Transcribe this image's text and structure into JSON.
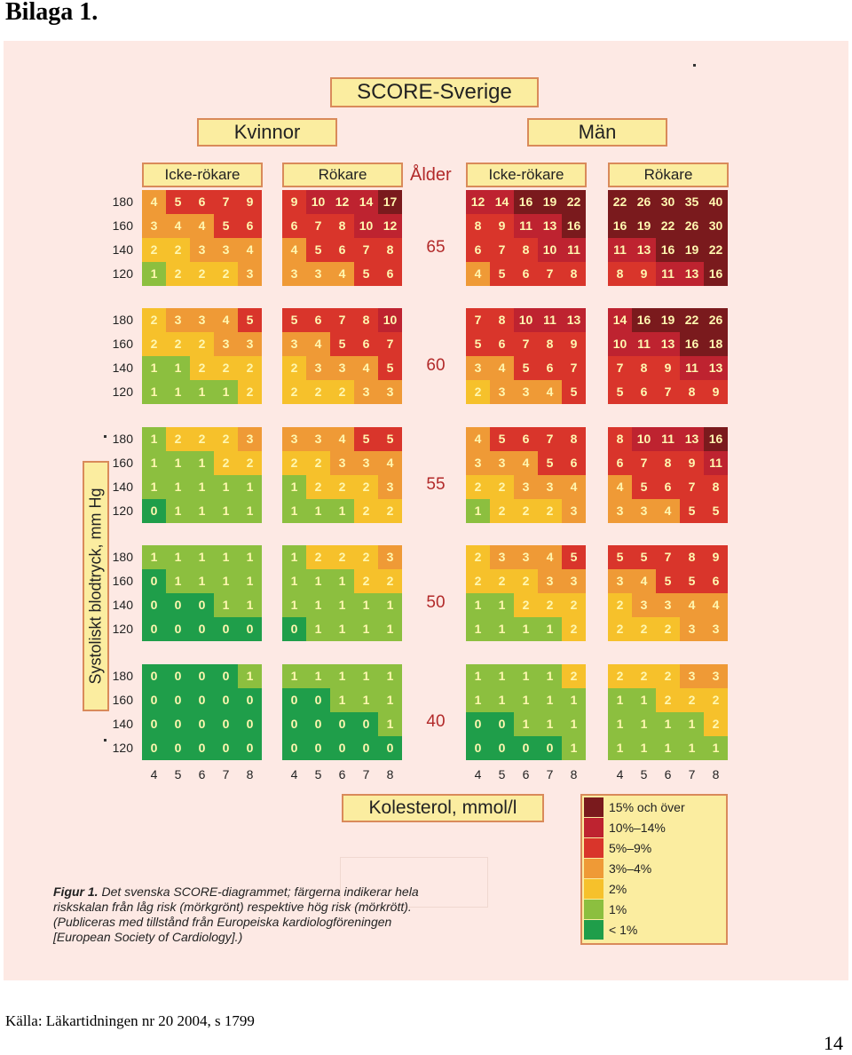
{
  "page": {
    "heading": "Bilaga 1.",
    "source": "Källa: Läkartidningen nr 20 2004, s 1799",
    "page_number": "14"
  },
  "figure": {
    "title": "SCORE-Sverige",
    "gender_women": "Kvinnor",
    "gender_men": "Män",
    "non_smoker": "Icke-rökare",
    "smoker": "Rökare",
    "age_header": "Ålder",
    "y_axis_label": "Systoliskt blodtryck, mm Hg",
    "x_axis_label": "Kolesterol, mmol/l",
    "bp_levels": [
      "180",
      "160",
      "140",
      "120"
    ],
    "cholesterol_ticks": [
      "4",
      "5",
      "6",
      "7",
      "8"
    ],
    "ages": [
      "65",
      "60",
      "55",
      "50",
      "40"
    ],
    "colors": {
      "dg": "#1f9e4a",
      "lg": "#8cbf3f",
      "yl": "#f6c12b",
      "or": "#ef9a36",
      "rd": "#d9352b",
      "dr": "#be2330",
      "mr": "#7a1a1d"
    },
    "legend": [
      {
        "label": "15% och över",
        "color": "#7a1a1d"
      },
      {
        "label": "10%–14%",
        "color": "#be2330"
      },
      {
        "label": "5%–9%",
        "color": "#d9352b"
      },
      {
        "label": "3%–4%",
        "color": "#ef9a36"
      },
      {
        "label": "2%",
        "color": "#f6c12b"
      },
      {
        "label": "1%",
        "color": "#8cbf3f"
      },
      {
        "label": "< 1%",
        "color": "#1f9e4a"
      }
    ],
    "caption_bold": "Figur 1.",
    "caption_text": " Det svenska SCORE-diagrammet; färgerna indikerar hela riskskalan från låg risk (mörkgrönt) respektive hög risk (mörkrött). (Publiceras med tillstånd från Europeiska kardiologföreningen [European Society of Cardiology].)"
  },
  "grids": {
    "65": {
      "women_non": [
        [
          4,
          5,
          6,
          7,
          9
        ],
        [
          3,
          4,
          4,
          5,
          6
        ],
        [
          2,
          2,
          3,
          3,
          4
        ],
        [
          1,
          2,
          2,
          2,
          3
        ]
      ],
      "women_smk": [
        [
          9,
          10,
          12,
          14,
          17
        ],
        [
          6,
          7,
          8,
          10,
          12
        ],
        [
          4,
          5,
          6,
          7,
          8
        ],
        [
          3,
          3,
          4,
          5,
          6
        ]
      ],
      "men_non": [
        [
          12,
          14,
          16,
          19,
          22
        ],
        [
          8,
          9,
          11,
          13,
          16
        ],
        [
          6,
          7,
          8,
          10,
          11
        ],
        [
          4,
          5,
          6,
          7,
          8
        ]
      ],
      "men_smk": [
        [
          22,
          26,
          30,
          35,
          40
        ],
        [
          16,
          19,
          22,
          26,
          30
        ],
        [
          11,
          13,
          16,
          19,
          22
        ],
        [
          8,
          9,
          11,
          13,
          16
        ]
      ]
    },
    "60": {
      "women_non": [
        [
          2,
          3,
          3,
          4,
          5
        ],
        [
          2,
          2,
          2,
          3,
          3
        ],
        [
          1,
          1,
          2,
          2,
          2
        ],
        [
          1,
          1,
          1,
          1,
          2
        ]
      ],
      "women_smk": [
        [
          5,
          6,
          7,
          8,
          10
        ],
        [
          3,
          4,
          5,
          6,
          7
        ],
        [
          2,
          3,
          3,
          4,
          5
        ],
        [
          2,
          2,
          2,
          3,
          3
        ]
      ],
      "men_non": [
        [
          7,
          8,
          10,
          11,
          13
        ],
        [
          5,
          6,
          7,
          8,
          9
        ],
        [
          3,
          4,
          5,
          6,
          7
        ],
        [
          2,
          3,
          3,
          4,
          5
        ]
      ],
      "men_smk": [
        [
          14,
          16,
          19,
          22,
          26
        ],
        [
          10,
          11,
          13,
          16,
          18
        ],
        [
          7,
          8,
          9,
          11,
          13
        ],
        [
          5,
          6,
          7,
          8,
          9
        ]
      ]
    },
    "55": {
      "women_non": [
        [
          1,
          2,
          2,
          2,
          3
        ],
        [
          1,
          1,
          1,
          2,
          2
        ],
        [
          1,
          1,
          1,
          1,
          1
        ],
        [
          0,
          1,
          1,
          1,
          1
        ]
      ],
      "women_smk": [
        [
          3,
          3,
          4,
          5,
          5
        ],
        [
          2,
          2,
          3,
          3,
          4
        ],
        [
          1,
          2,
          2,
          2,
          3
        ],
        [
          1,
          1,
          1,
          2,
          2
        ]
      ],
      "men_non": [
        [
          4,
          5,
          6,
          7,
          8
        ],
        [
          3,
          3,
          4,
          5,
          6
        ],
        [
          2,
          2,
          3,
          3,
          4
        ],
        [
          1,
          2,
          2,
          2,
          3
        ]
      ],
      "men_smk": [
        [
          8,
          10,
          11,
          13,
          16
        ],
        [
          6,
          7,
          8,
          9,
          11
        ],
        [
          4,
          5,
          6,
          7,
          8
        ],
        [
          3,
          3,
          4,
          5,
          5
        ]
      ]
    },
    "50": {
      "women_non": [
        [
          1,
          1,
          1,
          1,
          1
        ],
        [
          0,
          1,
          1,
          1,
          1
        ],
        [
          0,
          0,
          0,
          1,
          1
        ],
        [
          0,
          0,
          0,
          0,
          0
        ]
      ],
      "women_smk": [
        [
          1,
          2,
          2,
          2,
          3
        ],
        [
          1,
          1,
          1,
          2,
          2
        ],
        [
          1,
          1,
          1,
          1,
          1
        ],
        [
          0,
          1,
          1,
          1,
          1
        ]
      ],
      "men_non": [
        [
          2,
          3,
          3,
          4,
          5
        ],
        [
          2,
          2,
          2,
          3,
          3
        ],
        [
          1,
          1,
          2,
          2,
          2
        ],
        [
          1,
          1,
          1,
          1,
          2
        ]
      ],
      "men_smk": [
        [
          5,
          5,
          7,
          8,
          9
        ],
        [
          3,
          4,
          5,
          5,
          6
        ],
        [
          2,
          3,
          3,
          4,
          4
        ],
        [
          2,
          2,
          2,
          3,
          3
        ]
      ]
    },
    "40": {
      "women_non": [
        [
          0,
          0,
          0,
          0,
          1
        ],
        [
          0,
          0,
          0,
          0,
          0
        ],
        [
          0,
          0,
          0,
          0,
          0
        ],
        [
          0,
          0,
          0,
          0,
          0
        ]
      ],
      "women_smk": [
        [
          1,
          1,
          1,
          1,
          1
        ],
        [
          0,
          0,
          1,
          1,
          1
        ],
        [
          0,
          0,
          0,
          0,
          1
        ],
        [
          0,
          0,
          0,
          0,
          0
        ]
      ],
      "men_non": [
        [
          1,
          1,
          1,
          1,
          2
        ],
        [
          1,
          1,
          1,
          1,
          1
        ],
        [
          0,
          0,
          1,
          1,
          1
        ],
        [
          0,
          0,
          0,
          0,
          1
        ]
      ],
      "men_smk": [
        [
          2,
          2,
          2,
          3,
          3
        ],
        [
          1,
          1,
          2,
          2,
          2
        ],
        [
          1,
          1,
          1,
          1,
          2
        ],
        [
          1,
          1,
          1,
          1,
          1
        ]
      ]
    }
  }
}
